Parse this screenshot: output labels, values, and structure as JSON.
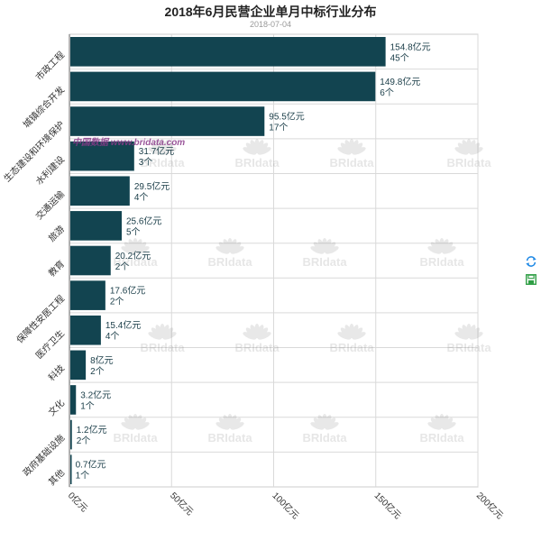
{
  "chart_data": {
    "type": "bar",
    "orientation": "horizontal",
    "title": "2018年6月民营企业单月中标行业分布",
    "subtitle": "2018-07-04",
    "categories": [
      "市政工程",
      "城镇综合开发",
      "生态建设和环境保护",
      "水利建设",
      "交通运输",
      "旅游",
      "教育",
      "保障性安居工程",
      "医疗卫生",
      "科技",
      "文化",
      "政府基础设施",
      "其他"
    ],
    "values": [
      154.8,
      149.8,
      95.5,
      31.7,
      29.5,
      25.6,
      20.2,
      17.6,
      15.4,
      8,
      3.2,
      1.2,
      0.7
    ],
    "value_labels": [
      "154.8亿元",
      "149.8亿元",
      "95.5亿元",
      "31.7亿元",
      "29.5亿元",
      "25.6亿元",
      "20.2亿元",
      "17.6亿元",
      "15.4亿元",
      "8亿元",
      "3.2亿元",
      "1.2亿元",
      "0.7亿元"
    ],
    "count_labels": [
      "45个",
      "6个",
      "17个",
      "3个",
      "4个",
      "5个",
      "2个",
      "2个",
      "4个",
      "2个",
      "1个",
      "2个",
      "1个"
    ],
    "xlim": [
      0,
      200
    ],
    "x_ticks": [
      0,
      50,
      100,
      150,
      200
    ],
    "x_tick_labels": [
      "0亿元",
      "50亿元",
      "100亿元",
      "150亿元",
      "200亿元"
    ],
    "grid": true,
    "bar_color": "#124450",
    "watermark": "BRIdata",
    "watermark_text": "中国数据 www.bridata.com"
  },
  "toolbar": {
    "refresh_icon": "refresh-icon",
    "save_icon": "save-image-icon",
    "refresh_color": "#1e88e5",
    "save_color": "#2e9e44"
  }
}
